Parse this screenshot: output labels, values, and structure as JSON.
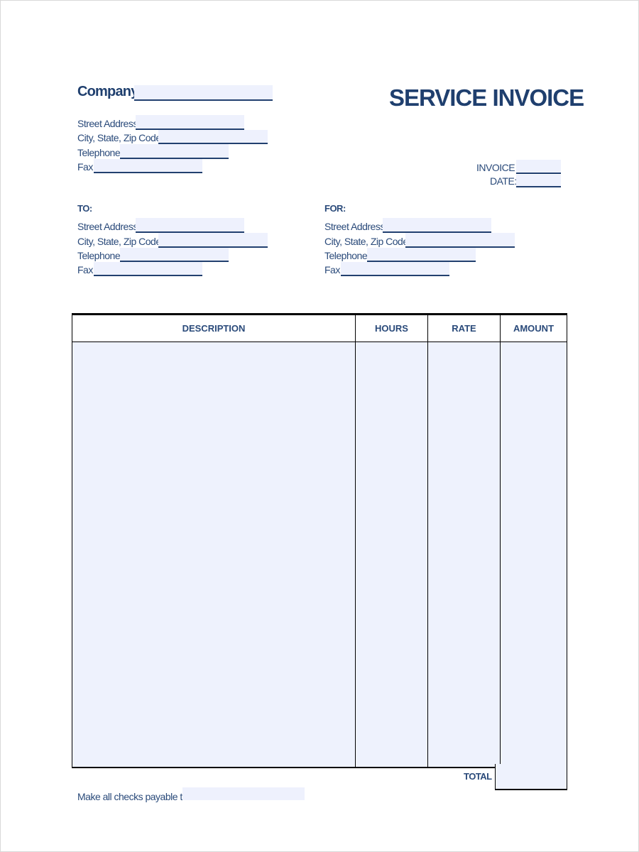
{
  "header": {
    "company_label": "Company",
    "title": "SERVICE INVOICE"
  },
  "company_fields": [
    "Street Address",
    "City, State, Zip Code",
    "Telephone",
    "Fax"
  ],
  "invoice": {
    "number_label": "INVOICE #",
    "date_label": "DATE:"
  },
  "to": {
    "heading": "TO:",
    "fields": [
      "Street Address",
      "City, State, Zip Code",
      "Telephone",
      "Fax"
    ]
  },
  "for": {
    "heading": "FOR:",
    "fields": [
      "Street Address",
      "City, State, Zip Code",
      "Telephone",
      "Fax"
    ]
  },
  "table": {
    "columns": [
      "DESCRIPTION",
      "HOURS",
      "RATE",
      "AMOUNT"
    ]
  },
  "total_label": "TOTAL",
  "checks_label": "Make all checks payable to",
  "colors": {
    "text": "#2a4a7a",
    "field_fill": "#eef1fd"
  }
}
